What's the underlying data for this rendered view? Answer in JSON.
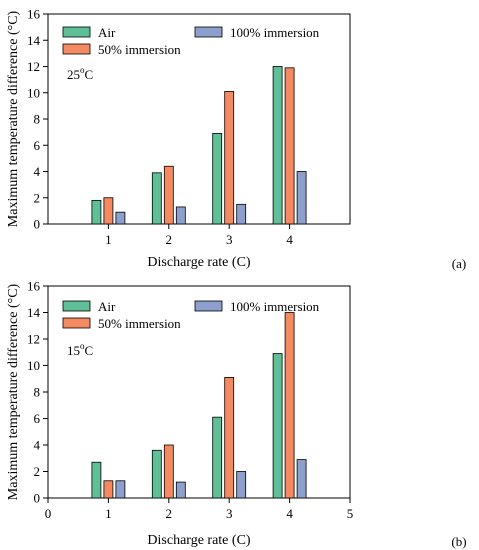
{
  "colors": {
    "Air": "#5fbf97",
    "50% immersion": "#f48a62",
    "100% immersion": "#8d9fcc",
    "axis": "#000000"
  },
  "chart_data": [
    {
      "type": "bar",
      "panel_label": "(a)",
      "annotation": {
        "base": "25",
        "sup": "o",
        "unit": "C"
      },
      "xlabel": "Discharge rate (C)",
      "ylabel": "Maximum temperature difference (°C)",
      "ylim": [
        0,
        16
      ],
      "yticks": [
        0,
        2,
        4,
        6,
        8,
        10,
        12,
        14,
        16
      ],
      "xticks": [
        1,
        2,
        3,
        4
      ],
      "xlim": [
        0,
        5
      ],
      "legend_position": "top",
      "categories": [
        1,
        2,
        3,
        4
      ],
      "series": [
        {
          "name": "Air",
          "values": [
            1.8,
            3.9,
            6.9,
            12.0
          ]
        },
        {
          "name": "50% immersion",
          "values": [
            2.0,
            4.4,
            10.1,
            11.9
          ]
        },
        {
          "name": "100% immersion",
          "values": [
            0.9,
            1.3,
            1.5,
            4.0
          ]
        }
      ]
    },
    {
      "type": "bar",
      "panel_label": "(b)",
      "annotation": {
        "base": "15",
        "sup": "o",
        "unit": "C"
      },
      "xlabel": "Discharge rate (C)",
      "ylabel": "Maximum temperature difference (°C)",
      "ylim": [
        0,
        16
      ],
      "yticks": [
        0,
        2,
        4,
        6,
        8,
        10,
        12,
        14,
        16
      ],
      "xticks": [
        0,
        1,
        2,
        3,
        4,
        5
      ],
      "xlim": [
        0,
        5
      ],
      "legend_position": "top",
      "categories": [
        1,
        2,
        3,
        4
      ],
      "series": [
        {
          "name": "Air",
          "values": [
            2.7,
            3.6,
            6.1,
            10.9
          ]
        },
        {
          "name": "50% immersion",
          "values": [
            1.3,
            4.0,
            9.1,
            14.0
          ]
        },
        {
          "name": "100% immersion",
          "values": [
            1.3,
            1.2,
            2.0,
            2.9
          ]
        }
      ]
    }
  ]
}
